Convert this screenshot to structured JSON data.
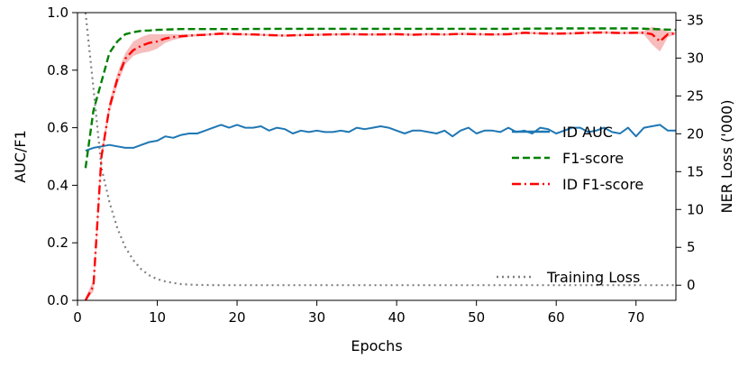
{
  "chart_data": {
    "type": "line",
    "xlabel": "Epochs",
    "ylabel_left": "AUC/F1",
    "ylabel_right": "NER Loss ('000)",
    "xlim": [
      0,
      75
    ],
    "ylim_left": [
      0,
      1.0
    ],
    "ylim_right": [
      -2,
      36
    ],
    "x_ticks": [
      0,
      10,
      20,
      30,
      40,
      50,
      60,
      70
    ],
    "y_ticks_left": [
      0.0,
      0.2,
      0.4,
      0.6,
      0.8,
      1.0
    ],
    "y_ticks_right": [
      0,
      5,
      10,
      15,
      20,
      25,
      30,
      35
    ],
    "x_tick_labels": [
      "0",
      "10",
      "20",
      "30",
      "40",
      "50",
      "60",
      "70"
    ],
    "y_tick_labels_left": [
      "0.0",
      "0.2",
      "0.4",
      "0.6",
      "0.8",
      "1.0"
    ],
    "y_tick_labels_right": [
      "0",
      "5",
      "10",
      "15",
      "20",
      "25",
      "30",
      "35"
    ],
    "grid": false,
    "series": [
      {
        "name": "ID AUC",
        "axis": "left",
        "color": "#1f77b4",
        "style": "solid",
        "x": [
          1,
          2,
          3,
          4,
          5,
          6,
          7,
          8,
          9,
          10,
          11,
          12,
          13,
          14,
          15,
          16,
          17,
          18,
          19,
          20,
          21,
          22,
          23,
          24,
          25,
          26,
          27,
          28,
          29,
          30,
          31,
          32,
          33,
          34,
          35,
          36,
          37,
          38,
          39,
          40,
          41,
          42,
          43,
          44,
          45,
          46,
          47,
          48,
          49,
          50,
          51,
          52,
          53,
          54,
          55,
          56,
          57,
          58,
          59,
          60,
          61,
          62,
          63,
          64,
          65,
          66,
          67,
          68,
          69,
          70,
          71,
          72,
          73,
          74,
          75
        ],
        "values": [
          0.52,
          0.53,
          0.535,
          0.54,
          0.535,
          0.53,
          0.53,
          0.54,
          0.55,
          0.555,
          0.57,
          0.565,
          0.575,
          0.58,
          0.58,
          0.59,
          0.6,
          0.61,
          0.6,
          0.61,
          0.6,
          0.6,
          0.605,
          0.59,
          0.6,
          0.595,
          0.58,
          0.59,
          0.585,
          0.59,
          0.585,
          0.585,
          0.59,
          0.585,
          0.6,
          0.595,
          0.6,
          0.605,
          0.6,
          0.59,
          0.58,
          0.59,
          0.59,
          0.585,
          0.58,
          0.59,
          0.57,
          0.59,
          0.6,
          0.58,
          0.59,
          0.59,
          0.585,
          0.6,
          0.585,
          0.59,
          0.58,
          0.6,
          0.595,
          0.58,
          0.59,
          0.6,
          0.6,
          0.585,
          0.59,
          0.6,
          0.585,
          0.58,
          0.6,
          0.57,
          0.6,
          0.605,
          0.61,
          0.59,
          0.59
        ]
      },
      {
        "name": "F1-score",
        "axis": "left",
        "color": "#008000",
        "style": "dashed",
        "x": [
          1,
          2,
          3,
          4,
          5,
          6,
          7,
          8,
          9,
          10,
          11,
          12,
          13,
          14,
          15,
          16,
          17,
          18,
          19,
          20,
          25,
          30,
          35,
          40,
          45,
          50,
          55,
          60,
          65,
          70,
          73,
          75
        ],
        "values": [
          0.46,
          0.66,
          0.76,
          0.86,
          0.9,
          0.925,
          0.932,
          0.937,
          0.938,
          0.94,
          0.941,
          0.942,
          0.943,
          0.943,
          0.943,
          0.943,
          0.943,
          0.943,
          0.943,
          0.943,
          0.944,
          0.944,
          0.944,
          0.944,
          0.944,
          0.944,
          0.944,
          0.945,
          0.945,
          0.945,
          0.942,
          0.94
        ]
      },
      {
        "name": "ID F1-score",
        "axis": "left",
        "color": "#ff0000",
        "style": "dashdot",
        "band_color": "#f4a6a6",
        "x": [
          1,
          2,
          3,
          4,
          5,
          6,
          7,
          8,
          9,
          10,
          11,
          12,
          13,
          14,
          15,
          16,
          17,
          18,
          19,
          20,
          22,
          24,
          26,
          28,
          30,
          32,
          34,
          36,
          38,
          40,
          42,
          44,
          46,
          48,
          50,
          52,
          54,
          56,
          58,
          60,
          62,
          64,
          66,
          68,
          70,
          71,
          72,
          73,
          74,
          75
        ],
        "values": [
          0.0,
          0.05,
          0.5,
          0.67,
          0.77,
          0.84,
          0.87,
          0.885,
          0.895,
          0.9,
          0.91,
          0.915,
          0.918,
          0.92,
          0.922,
          0.923,
          0.925,
          0.927,
          0.926,
          0.925,
          0.924,
          0.922,
          0.92,
          0.922,
          0.923,
          0.924,
          0.925,
          0.924,
          0.924,
          0.925,
          0.923,
          0.925,
          0.924,
          0.926,
          0.925,
          0.924,
          0.925,
          0.93,
          0.928,
          0.927,
          0.928,
          0.93,
          0.931,
          0.929,
          0.93,
          0.93,
          0.925,
          0.9,
          0.925,
          0.928
        ],
        "band_upper": [
          0.01,
          0.07,
          0.52,
          0.69,
          0.79,
          0.86,
          0.9,
          0.915,
          0.925,
          0.925,
          0.925,
          0.925,
          0.925,
          0.925,
          0.926,
          0.927,
          0.929,
          0.931,
          0.93,
          0.929,
          0.928,
          0.926,
          0.924,
          0.926,
          0.927,
          0.928,
          0.929,
          0.928,
          0.928,
          0.929,
          0.927,
          0.929,
          0.928,
          0.93,
          0.929,
          0.928,
          0.929,
          0.934,
          0.932,
          0.931,
          0.932,
          0.934,
          0.935,
          0.933,
          0.934,
          0.936,
          0.95,
          0.945,
          0.935,
          0.932
        ],
        "band_lower": [
          0.0,
          0.03,
          0.48,
          0.65,
          0.75,
          0.82,
          0.85,
          0.86,
          0.865,
          0.875,
          0.895,
          0.905,
          0.911,
          0.915,
          0.918,
          0.919,
          0.921,
          0.923,
          0.922,
          0.921,
          0.92,
          0.918,
          0.916,
          0.918,
          0.919,
          0.92,
          0.921,
          0.92,
          0.92,
          0.921,
          0.919,
          0.921,
          0.92,
          0.922,
          0.921,
          0.92,
          0.921,
          0.926,
          0.924,
          0.923,
          0.924,
          0.926,
          0.927,
          0.925,
          0.926,
          0.924,
          0.89,
          0.865,
          0.915,
          0.924
        ]
      },
      {
        "name": "Training Loss",
        "axis": "right",
        "color": "#808080",
        "style": "dotted",
        "x": [
          1,
          2,
          3,
          4,
          5,
          6,
          7,
          8,
          9,
          10,
          11,
          12,
          13,
          14,
          15,
          16,
          18,
          20,
          25,
          30,
          40,
          50,
          60,
          70,
          75
        ],
        "values": [
          36,
          26,
          15.5,
          11,
          7.5,
          5.0,
          3.3,
          2.1,
          1.3,
          0.8,
          0.5,
          0.3,
          0.15,
          0.08,
          0.04,
          0.02,
          0.0,
          0.0,
          0.0,
          0.0,
          0.0,
          0.0,
          0.0,
          0.0,
          0.0
        ]
      }
    ],
    "legends": [
      {
        "placement": "center-right",
        "entries": [
          "ID AUC",
          "F1-score",
          "ID F1-score"
        ]
      },
      {
        "placement": "lower-right",
        "entries": [
          "Training Loss"
        ]
      }
    ]
  }
}
